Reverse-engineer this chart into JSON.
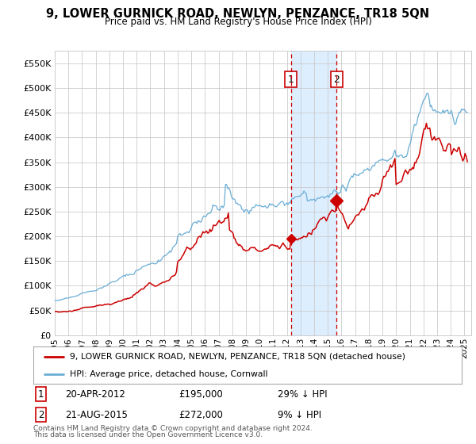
{
  "title": "9, LOWER GURNICK ROAD, NEWLYN, PENZANCE, TR18 5QN",
  "subtitle": "Price paid vs. HM Land Registry's House Price Index (HPI)",
  "legend_property": "9, LOWER GURNICK ROAD, NEWLYN, PENZANCE, TR18 5QN (detached house)",
  "legend_hpi": "HPI: Average price, detached house, Cornwall",
  "annotation1_year": 2012.3,
  "annotation1_price": 195000,
  "annotation1_label": "1",
  "annotation2_year": 2015.64,
  "annotation2_price": 272000,
  "annotation2_label": "2",
  "row1_num": "1",
  "row1_date": "20-APR-2012",
  "row1_price": "£195,000",
  "row1_hpi": "29% ↓ HPI",
  "row2_num": "2",
  "row2_date": "21-AUG-2015",
  "row2_price": "£272,000",
  "row2_hpi": "9% ↓ HPI",
  "hpi_color": "#6aaed6",
  "property_color": "#cc0000",
  "shade_color": "#ddeeff",
  "grid_color": "#cccccc",
  "footnote_line1": "Contains HM Land Registry data © Crown copyright and database right 2024.",
  "footnote_line2": "This data is licensed under the Open Government Licence v3.0.",
  "ylim": [
    0,
    575000
  ],
  "xlim_start": 1995.0,
  "xlim_end": 2025.5,
  "yticks": [
    0,
    50000,
    100000,
    150000,
    200000,
    250000,
    300000,
    350000,
    400000,
    450000,
    500000,
    550000
  ]
}
